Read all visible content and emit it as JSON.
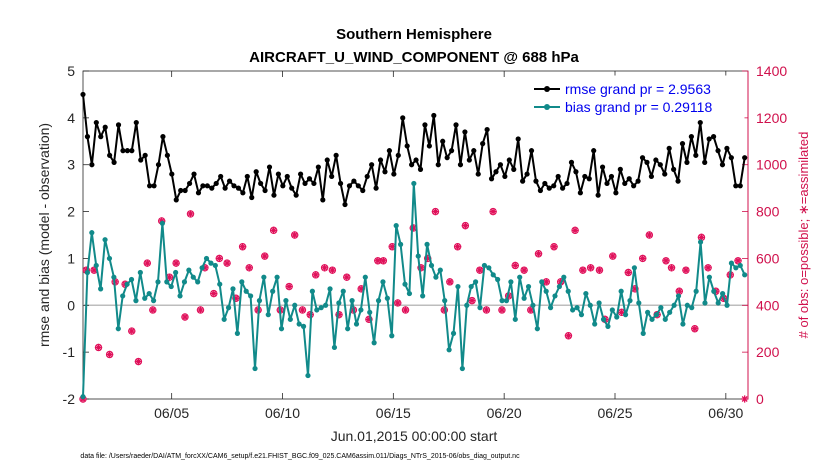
{
  "chart_data": {
    "type": "line",
    "title": "Southern Hemisphere",
    "subtitle": "AIRCRAFT_U_WIND_COMPONENT @ 688 hPa",
    "xlabel": "Jun.01,2015 00:00:00 start",
    "ylabel": "rmse and bias (model - observation)",
    "y2label": "# of obs: o=possible; ∗=assimilated",
    "xlim": [
      1.0,
      31.0
    ],
    "ylim": [
      -2,
      5
    ],
    "y2lim": [
      0,
      1400
    ],
    "x_ticks": [
      5,
      10,
      15,
      20,
      25,
      30
    ],
    "x_tick_labels": [
      "06/05",
      "06/10",
      "06/15",
      "06/20",
      "06/25",
      "06/30"
    ],
    "y_ticks": [
      -2,
      -1,
      0,
      1,
      2,
      3,
      4,
      5
    ],
    "y2_ticks": [
      0,
      200,
      400,
      600,
      800,
      1000,
      1200,
      1400
    ],
    "grid": false,
    "legend_position": "top-right",
    "footnote": "data file: /Users/raeder/DAI/ATM_forcXX/CAM6_setup/f.e21.FHIST_BGC.f09_025.CAM6assim.011/Diags_NTrS_2015-06/obs_diag_output.nc",
    "series": [
      {
        "name": "rmse grand pr = 2.9563",
        "color": "#000000",
        "axis": "left",
        "values": [
          4.5,
          3.6,
          3.0,
          3.9,
          3.6,
          3.8,
          3.2,
          3.05,
          3.85,
          3.3,
          3.3,
          3.3,
          3.9,
          3.1,
          3.2,
          2.55,
          2.55,
          3.0,
          3.6,
          3.2,
          2.8,
          2.25,
          2.45,
          2.45,
          2.6,
          2.8,
          2.4,
          2.55,
          2.55,
          2.5,
          2.6,
          2.75,
          2.5,
          2.65,
          2.55,
          2.5,
          2.4,
          2.75,
          2.3,
          2.85,
          2.6,
          2.45,
          2.95,
          2.35,
          2.8,
          2.55,
          2.75,
          2.5,
          2.35,
          2.8,
          2.6,
          2.7,
          2.6,
          2.95,
          2.25,
          3.1,
          2.75,
          3.2,
          2.6,
          2.15,
          2.55,
          2.65,
          2.55,
          2.45,
          2.75,
          3.0,
          2.5,
          3.1,
          2.85,
          3.3,
          2.8,
          3.2,
          4.0,
          3.4,
          3.0,
          3.1,
          2.9,
          3.85,
          3.4,
          4.05,
          3.0,
          3.5,
          3.15,
          3.3,
          3.85,
          3.0,
          3.7,
          3.1,
          3.3,
          2.8,
          3.45,
          3.75,
          2.7,
          2.85,
          3.0,
          2.75,
          3.1,
          2.9,
          3.55,
          2.65,
          2.8,
          3.3,
          2.65,
          2.45,
          2.6,
          2.5,
          2.55,
          2.75,
          2.5,
          2.6,
          3.05,
          2.85,
          2.4,
          2.75,
          2.7,
          3.3,
          2.35,
          2.95,
          2.6,
          2.75,
          2.4,
          2.9,
          2.6,
          2.7,
          2.55,
          2.65,
          3.15,
          3.05,
          2.75,
          3.1,
          3.0,
          2.8,
          3.35,
          2.9,
          2.65,
          3.45,
          3.05,
          3.6,
          3.2,
          3.9,
          3.05,
          3.55,
          3.6,
          3.3,
          3.0,
          3.35,
          3.15,
          2.55,
          2.55,
          3.15
        ]
      },
      {
        "name": "bias grand pr = 0.29118",
        "color": "#118a8a",
        "axis": "left",
        "values": [
          -1.95,
          0.7,
          1.55,
          0.85,
          0.35,
          1.4,
          1.0,
          0.6,
          -0.5,
          0.2,
          0.45,
          0.55,
          0.1,
          0.7,
          0.15,
          0.25,
          0.1,
          0.5,
          1.75,
          0.5,
          0.4,
          0.7,
          0.2,
          0.5,
          0.75,
          0.6,
          0.5,
          0.8,
          1.0,
          0.9,
          0.85,
          0.45,
          -0.3,
          -0.05,
          0.35,
          -0.6,
          0.5,
          0.3,
          0.2,
          -1.35,
          0.1,
          0.6,
          -0.2,
          0.3,
          0.6,
          -0.5,
          0.1,
          -0.3,
          0.0,
          -0.4,
          -0.45,
          -1.5,
          0.3,
          -0.1,
          -0.05,
          0.0,
          0.35,
          -0.9,
          0.05,
          0.3,
          -0.5,
          0.1,
          -0.4,
          -0.1,
          0.6,
          -0.15,
          -0.8,
          0.1,
          0.5,
          0.15,
          -0.65,
          1.7,
          1.3,
          0.45,
          0.25,
          2.6,
          1.05,
          0.2,
          1.3,
          0.85,
          0.6,
          0.75,
          0.1,
          -0.95,
          -0.6,
          0.4,
          -1.35,
          0.0,
          0.4,
          0.5,
          -0.05,
          0.85,
          0.8,
          0.65,
          0.55,
          0.1,
          0.1,
          0.5,
          -0.3,
          0.6,
          0.15,
          0.4,
          0.0,
          -0.5,
          0.5,
          0.3,
          -0.05,
          0.2,
          0.4,
          0.6,
          0.3,
          -0.1,
          -0.05,
          -0.2,
          0.25,
          0.0,
          -0.4,
          0.05,
          -0.3,
          -0.45,
          -0.1,
          -0.25,
          0.3,
          -0.2,
          0.1,
          0.8,
          0.05,
          -0.6,
          -0.15,
          -0.3,
          -0.2,
          -0.05,
          -0.3,
          -0.15,
          0.0,
          0.2,
          -0.4,
          0.0,
          -0.05,
          0.3,
          1.35,
          0.05,
          0.6,
          0.3,
          0.05,
          0.25,
          0.0,
          0.9,
          0.8,
          0.85,
          0.65
        ]
      }
    ],
    "obs_possible": {
      "name": "# of obs possible",
      "marker": "o",
      "color": "#e0105a",
      "axis": "right",
      "x": [
        1.0,
        1.15,
        1.5,
        1.7,
        2.2,
        2.45,
        2.9,
        3.2,
        3.5,
        3.9,
        4.15,
        4.55,
        4.9,
        5.2,
        5.6,
        5.85,
        6.3,
        6.5,
        6.9,
        7.15,
        7.5,
        7.9,
        8.2,
        8.5,
        8.9,
        9.2,
        9.6,
        9.9,
        10.3,
        10.55,
        10.9,
        11.25,
        11.5,
        11.9,
        12.25,
        12.55,
        12.9,
        13.2,
        13.55,
        13.9,
        14.3,
        14.55,
        14.95,
        15.2,
        15.55,
        15.9,
        16.25,
        16.55,
        16.9,
        17.3,
        17.55,
        17.9,
        18.25,
        18.55,
        18.9,
        19.2,
        19.5,
        19.9,
        20.2,
        20.5,
        20.9,
        21.2,
        21.55,
        21.9,
        22.25,
        22.55,
        22.9,
        23.2,
        23.55,
        23.9,
        24.3,
        24.55,
        24.9,
        25.3,
        25.6,
        25.9,
        26.25,
        26.55,
        26.9,
        27.3,
        27.55,
        27.9,
        28.2,
        28.6,
        28.9,
        29.2,
        29.55,
        29.9,
        30.2,
        30.55
      ],
      "values": [
        0,
        550,
        550,
        220,
        190,
        500,
        490,
        290,
        160,
        580,
        380,
        760,
        520,
        580,
        350,
        790,
        380,
        560,
        450,
        600,
        580,
        430,
        650,
        560,
        380,
        610,
        720,
        380,
        480,
        700,
        380,
        360,
        530,
        560,
        550,
        360,
        520,
        380,
        470,
        340,
        590,
        590,
        650,
        410,
        380,
        730,
        560,
        600,
        800,
        380,
        500,
        650,
        740,
        420,
        550,
        380,
        800,
        380,
        440,
        570,
        550,
        380,
        620,
        500,
        650,
        500,
        270,
        720,
        550,
        560,
        550,
        340,
        610,
        370,
        540,
        470,
        600,
        700,
        360,
        590,
        560,
        460,
        550,
        300,
        690,
        560,
        460,
        430,
        530,
        590
      ]
    },
    "obs_assimilated": {
      "name": "# of obs assimilated",
      "marker": "*",
      "color": "#e0105a",
      "axis": "right",
      "x": [
        1.0,
        1.15,
        1.5,
        1.7,
        2.2,
        2.45,
        2.9,
        3.2,
        3.5,
        3.9,
        4.15,
        4.55,
        4.9,
        5.2,
        5.6,
        5.85,
        6.3,
        6.5,
        6.9,
        7.15,
        7.5,
        7.9,
        8.2,
        8.5,
        8.9,
        9.2,
        9.6,
        9.9,
        10.3,
        10.55,
        10.9,
        11.25,
        11.5,
        11.9,
        12.25,
        12.55,
        12.9,
        13.2,
        13.55,
        13.9,
        14.3,
        14.55,
        14.95,
        15.2,
        15.55,
        15.9,
        16.25,
        16.55,
        16.9,
        17.3,
        17.55,
        17.9,
        18.25,
        18.55,
        18.9,
        19.2,
        19.5,
        19.9,
        20.2,
        20.5,
        20.9,
        21.2,
        21.55,
        21.9,
        22.25,
        22.55,
        22.9,
        23.2,
        23.55,
        23.9,
        24.3,
        24.55,
        24.9,
        25.3,
        25.6,
        25.9,
        26.25,
        26.55,
        26.9,
        27.3,
        27.55,
        27.9,
        28.2,
        28.6,
        28.9,
        29.2,
        29.55,
        29.9,
        30.2,
        30.55,
        30.85
      ],
      "values": [
        0,
        550,
        550,
        220,
        190,
        500,
        490,
        290,
        160,
        580,
        380,
        760,
        520,
        580,
        350,
        790,
        380,
        560,
        450,
        600,
        580,
        430,
        650,
        560,
        380,
        610,
        720,
        380,
        480,
        700,
        380,
        360,
        530,
        560,
        550,
        360,
        520,
        380,
        470,
        340,
        590,
        590,
        650,
        410,
        380,
        730,
        560,
        600,
        800,
        380,
        500,
        650,
        740,
        420,
        550,
        380,
        800,
        380,
        440,
        570,
        550,
        380,
        620,
        500,
        650,
        500,
        270,
        720,
        550,
        560,
        550,
        340,
        610,
        370,
        540,
        470,
        600,
        700,
        360,
        590,
        560,
        460,
        550,
        300,
        690,
        560,
        460,
        430,
        530,
        590,
        0
      ]
    }
  }
}
